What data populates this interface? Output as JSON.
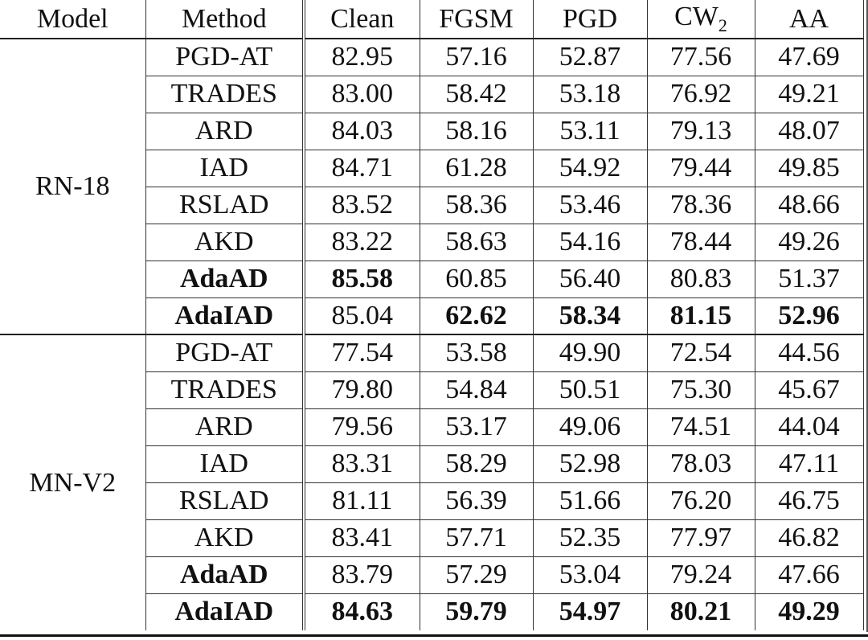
{
  "table": {
    "headers": {
      "model": "Model",
      "method": "Method",
      "clean": "Clean",
      "fgsm": "FGSM",
      "pgd": "PGD",
      "cw_base": "CW",
      "cw_sub": "2",
      "aa": "AA"
    },
    "groups": [
      {
        "model": "RN-18",
        "rows": [
          {
            "method": "PGD-AT",
            "vals": [
              "82.95",
              "57.16",
              "52.87",
              "77.56",
              "47.69"
            ],
            "bold": [
              false,
              false,
              false,
              false,
              false,
              false
            ]
          },
          {
            "method": "TRADES",
            "vals": [
              "83.00",
              "58.42",
              "53.18",
              "76.92",
              "49.21"
            ],
            "bold": [
              false,
              false,
              false,
              false,
              false,
              false
            ]
          },
          {
            "method": "ARD",
            "vals": [
              "84.03",
              "58.16",
              "53.11",
              "79.13",
              "48.07"
            ],
            "bold": [
              false,
              false,
              false,
              false,
              false,
              false
            ]
          },
          {
            "method": "IAD",
            "vals": [
              "84.71",
              "61.28",
              "54.92",
              "79.44",
              "49.85"
            ],
            "bold": [
              false,
              false,
              false,
              false,
              false,
              false
            ]
          },
          {
            "method": "RSLAD",
            "vals": [
              "83.52",
              "58.36",
              "53.46",
              "78.36",
              "48.66"
            ],
            "bold": [
              false,
              false,
              false,
              false,
              false,
              false
            ]
          },
          {
            "method": "AKD",
            "vals": [
              "83.22",
              "58.63",
              "54.16",
              "78.44",
              "49.26"
            ],
            "bold": [
              false,
              false,
              false,
              false,
              false,
              false
            ]
          },
          {
            "method": "AdaAD",
            "vals": [
              "85.58",
              "60.85",
              "56.40",
              "80.83",
              "51.37"
            ],
            "bold": [
              true,
              true,
              false,
              false,
              false,
              false
            ]
          },
          {
            "method": "AdaIAD",
            "vals": [
              "85.04",
              "62.62",
              "58.34",
              "81.15",
              "52.96"
            ],
            "bold": [
              true,
              false,
              true,
              true,
              true,
              true
            ]
          }
        ]
      },
      {
        "model": "MN-V2",
        "rows": [
          {
            "method": "PGD-AT",
            "vals": [
              "77.54",
              "53.58",
              "49.90",
              "72.54",
              "44.56"
            ],
            "bold": [
              false,
              false,
              false,
              false,
              false,
              false
            ]
          },
          {
            "method": "TRADES",
            "vals": [
              "79.80",
              "54.84",
              "50.51",
              "75.30",
              "45.67"
            ],
            "bold": [
              false,
              false,
              false,
              false,
              false,
              false
            ]
          },
          {
            "method": "ARD",
            "vals": [
              "79.56",
              "53.17",
              "49.06",
              "74.51",
              "44.04"
            ],
            "bold": [
              false,
              false,
              false,
              false,
              false,
              false
            ]
          },
          {
            "method": "IAD",
            "vals": [
              "83.31",
              "58.29",
              "52.98",
              "78.03",
              "47.11"
            ],
            "bold": [
              false,
              false,
              false,
              false,
              false,
              false
            ]
          },
          {
            "method": "RSLAD",
            "vals": [
              "81.11",
              "56.39",
              "51.66",
              "76.20",
              "46.75"
            ],
            "bold": [
              false,
              false,
              false,
              false,
              false,
              false
            ]
          },
          {
            "method": "AKD",
            "vals": [
              "83.41",
              "57.71",
              "52.35",
              "77.97",
              "46.82"
            ],
            "bold": [
              false,
              false,
              false,
              false,
              false,
              false
            ]
          },
          {
            "method": "AdaAD",
            "vals": [
              "83.79",
              "57.29",
              "53.04",
              "79.24",
              "47.66"
            ],
            "bold": [
              true,
              false,
              false,
              false,
              false,
              false
            ]
          },
          {
            "method": "AdaIAD",
            "vals": [
              "84.63",
              "59.79",
              "54.97",
              "80.21",
              "49.29"
            ],
            "bold": [
              true,
              true,
              true,
              true,
              true,
              true
            ]
          }
        ]
      }
    ]
  }
}
